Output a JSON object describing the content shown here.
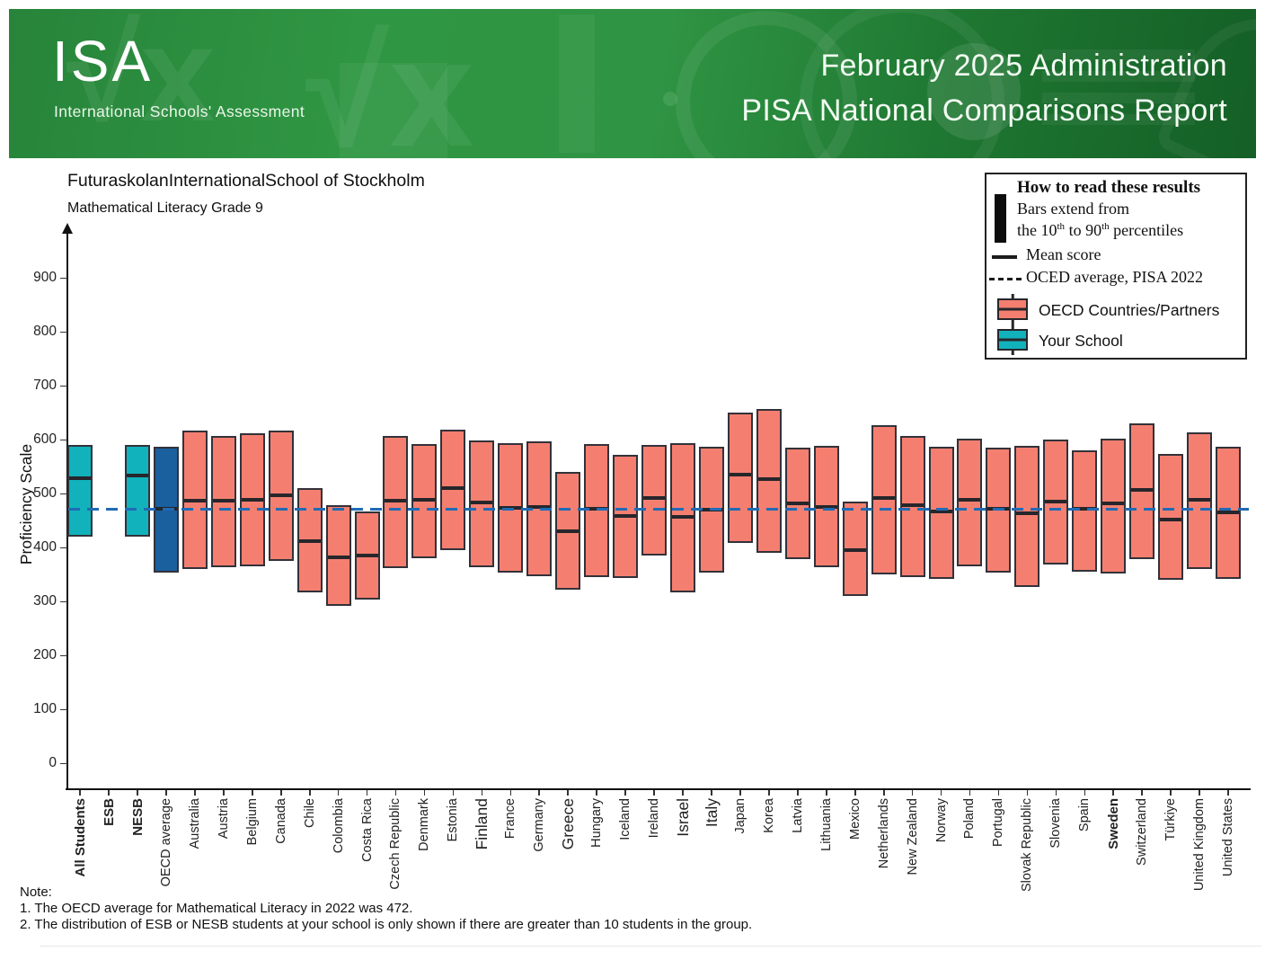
{
  "header": {
    "logo_title": "ISA",
    "logo_subtitle": "International Schools' Assessment",
    "report_line1": "February 2025 Administration",
    "report_line2": "PISA National Comparisons Report",
    "math_motif": "√x",
    "colors": {
      "green_mid": "#2F9643",
      "green_dark": "#145F26"
    }
  },
  "legend": {
    "title": "How to read these results",
    "bars_line1": "Bars extend from",
    "percentiles": {
      "t1": "the 10",
      "sup1": "th",
      "t2": " to 90",
      "sup2": "th",
      "t3": " percentiles"
    },
    "mean_label": "Mean score",
    "oecd_avg_label": "OCED average, PISA 2022",
    "countries_label": "OECD Countries/Partners",
    "school_label": "Your School"
  },
  "notes": {
    "heading": "Note:",
    "line1": "1. The OECD average for Mathematical Literacy in 2022 was 472.",
    "line2": "2. The distribution of ESB or NESB students at your school is only shown if there are greater than 10 students in the group."
  },
  "chart_data": {
    "type": "bar",
    "style": "percentile-range bars (10th to 90th) with mean line per group",
    "title": "FuturaskolanInternationalSchool of Stockholm",
    "subtitle": "Mathematical Literacy Grade 9",
    "ylabel": "Proficiency Scale",
    "ylim": [
      0,
      960
    ],
    "yticks": [
      0,
      100,
      200,
      300,
      400,
      500,
      600,
      700,
      800,
      900
    ],
    "grid": false,
    "legend_position": "top-right",
    "reference_line": {
      "label": "OECD average, PISA 2022",
      "value": 472,
      "style": "dashed",
      "color": "#1F6BB5"
    },
    "colors": {
      "school": "#12B2BC",
      "oecd": "#1A5F9E",
      "country": "#F47F70",
      "bar_border": "#32323A",
      "mean_line": "#26262B"
    },
    "series": [
      {
        "label": "All Students",
        "group": "school",
        "bold": true,
        "p10": 420,
        "mean": 529,
        "p90": 591
      },
      {
        "label": "ESB",
        "group": "school",
        "bold": true,
        "p10": null,
        "mean": null,
        "p90": null
      },
      {
        "label": "NESB",
        "group": "school",
        "bold": true,
        "p10": 420,
        "mean": 534,
        "p90": 591
      },
      {
        "label": "OECD average",
        "group": "oecd",
        "p10": 354,
        "mean": 472,
        "p90": 588
      },
      {
        "label": "Australia",
        "group": "country",
        "p10": 360,
        "mean": 487,
        "p90": 617
      },
      {
        "label": "Austria",
        "group": "country",
        "p10": 363,
        "mean": 487,
        "p90": 607
      },
      {
        "label": "Belgium",
        "group": "country",
        "p10": 365,
        "mean": 489,
        "p90": 612
      },
      {
        "label": "Canada",
        "group": "country",
        "p10": 376,
        "mean": 497,
        "p90": 618
      },
      {
        "label": "Chile",
        "group": "country",
        "p10": 317,
        "mean": 412,
        "p90": 511
      },
      {
        "label": "Colombia",
        "group": "country",
        "p10": 292,
        "mean": 383,
        "p90": 479
      },
      {
        "label": "Costa Rica",
        "group": "country",
        "p10": 304,
        "mean": 385,
        "p90": 468
      },
      {
        "label": "Czech Republic",
        "group": "country",
        "p10": 363,
        "mean": 487,
        "p90": 608
      },
      {
        "label": "Denmark",
        "group": "country",
        "p10": 380,
        "mean": 489,
        "p90": 592
      },
      {
        "label": "Estonia",
        "group": "country",
        "p10": 396,
        "mean": 510,
        "p90": 619
      },
      {
        "label": "Finland",
        "group": "country",
        "large": true,
        "p10": 364,
        "mean": 484,
        "p90": 599
      },
      {
        "label": "France",
        "group": "country",
        "p10": 353,
        "mean": 474,
        "p90": 594
      },
      {
        "label": "Germany",
        "group": "country",
        "p10": 347,
        "mean": 475,
        "p90": 598
      },
      {
        "label": "Greece",
        "group": "country",
        "large": true,
        "p10": 322,
        "mean": 430,
        "p90": 541
      },
      {
        "label": "Hungary",
        "group": "country",
        "p10": 346,
        "mean": 473,
        "p90": 592
      },
      {
        "label": "Iceland",
        "group": "country",
        "p10": 343,
        "mean": 459,
        "p90": 572
      },
      {
        "label": "Ireland",
        "group": "country",
        "p10": 385,
        "mean": 492,
        "p90": 590
      },
      {
        "label": "Israel",
        "group": "country",
        "large": true,
        "p10": 317,
        "mean": 458,
        "p90": 594
      },
      {
        "label": "Italy",
        "group": "country",
        "large": true,
        "p10": 354,
        "mean": 471,
        "p90": 588
      },
      {
        "label": "Japan",
        "group": "country",
        "p10": 408,
        "mean": 536,
        "p90": 650
      },
      {
        "label": "Korea",
        "group": "country",
        "p10": 390,
        "mean": 527,
        "p90": 658
      },
      {
        "label": "Latvia",
        "group": "country",
        "p10": 379,
        "mean": 483,
        "p90": 585
      },
      {
        "label": "Lithuania",
        "group": "country",
        "p10": 363,
        "mean": 475,
        "p90": 589
      },
      {
        "label": "Mexico",
        "group": "country",
        "p10": 310,
        "mean": 395,
        "p90": 485
      },
      {
        "label": "Netherlands",
        "group": "country",
        "p10": 350,
        "mean": 493,
        "p90": 628
      },
      {
        "label": "New Zealand",
        "group": "country",
        "p10": 346,
        "mean": 479,
        "p90": 607
      },
      {
        "label": "Norway",
        "group": "country",
        "p10": 343,
        "mean": 468,
        "p90": 588
      },
      {
        "label": "Poland",
        "group": "country",
        "p10": 366,
        "mean": 489,
        "p90": 603
      },
      {
        "label": "Portugal",
        "group": "country",
        "p10": 354,
        "mean": 472,
        "p90": 586
      },
      {
        "label": "Slovak Republic",
        "group": "country",
        "p10": 327,
        "mean": 464,
        "p90": 589
      },
      {
        "label": "Slovenia",
        "group": "country",
        "p10": 368,
        "mean": 485,
        "p90": 600
      },
      {
        "label": "Spain",
        "group": "country",
        "p10": 356,
        "mean": 473,
        "p90": 580
      },
      {
        "label": "Sweden",
        "group": "country",
        "bold": true,
        "p10": 353,
        "mean": 482,
        "p90": 603
      },
      {
        "label": "Switzerland",
        "group": "country",
        "p10": 378,
        "mean": 508,
        "p90": 631
      },
      {
        "label": "Türkiye",
        "group": "country",
        "p10": 340,
        "mean": 453,
        "p90": 574
      },
      {
        "label": "United Kingdom",
        "group": "country",
        "p10": 360,
        "mean": 489,
        "p90": 614
      },
      {
        "label": "United States",
        "group": "country",
        "p10": 343,
        "mean": 465,
        "p90": 588
      }
    ]
  }
}
